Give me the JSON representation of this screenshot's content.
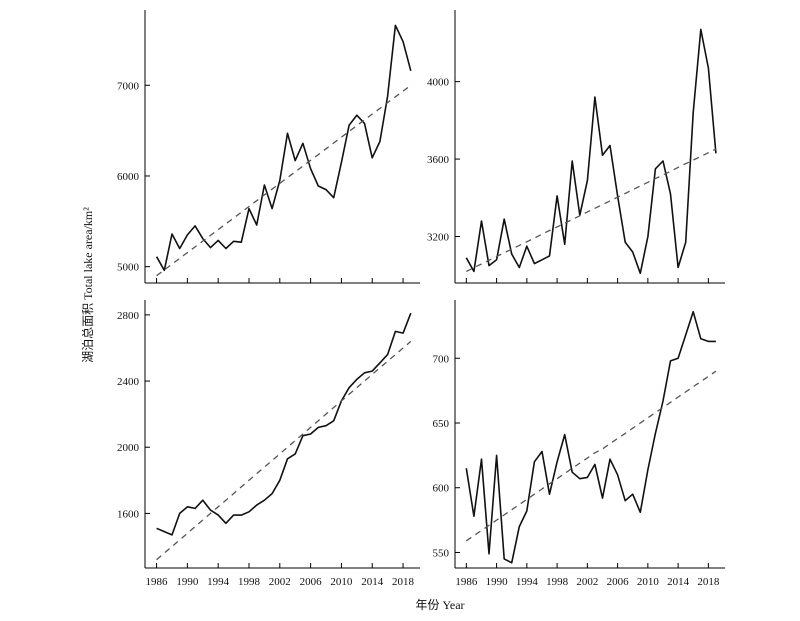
{
  "axis_titles": {
    "y": "湖泊总面积 Total lake area/km²",
    "x": "年份 Year"
  },
  "chart_data": [
    {
      "type": "line",
      "panel": "top-left",
      "x": [
        1986,
        1987,
        1988,
        1989,
        1990,
        1991,
        1992,
        1993,
        1994,
        1995,
        1996,
        1997,
        1998,
        1999,
        2000,
        2001,
        2002,
        2003,
        2004,
        2005,
        2006,
        2007,
        2008,
        2009,
        2010,
        2011,
        2012,
        2013,
        2014,
        2015,
        2016,
        2017,
        2018,
        2019
      ],
      "series": [
        {
          "style": "solid",
          "values": [
            5110,
            4960,
            5360,
            5200,
            5350,
            5450,
            5310,
            5210,
            5290,
            5200,
            5280,
            5270,
            5640,
            5460,
            5900,
            5640,
            5950,
            6470,
            6170,
            6360,
            6080,
            5890,
            5850,
            5760,
            6150,
            6560,
            6670,
            6580,
            6200,
            6380,
            6880,
            7660,
            7480,
            7160
          ]
        },
        {
          "style": "dashed",
          "values": [
            4900,
            4964,
            5027,
            5091,
            5155,
            5218,
            5282,
            5345,
            5409,
            5473,
            5536,
            5600,
            5664,
            5727,
            5791,
            5855,
            5918,
            5982,
            6045,
            6109,
            6173,
            6236,
            6300,
            6364,
            6427,
            6491,
            6555,
            6618,
            6682,
            6745,
            6809,
            6873,
            6936,
            7000
          ]
        }
      ],
      "yticks": [
        5000,
        6000,
        7000
      ],
      "ylim": [
        4820,
        7830
      ]
    },
    {
      "type": "line",
      "panel": "top-right",
      "x": [
        1986,
        1987,
        1988,
        1989,
        1990,
        1991,
        1992,
        1993,
        1994,
        1995,
        1996,
        1997,
        1998,
        1999,
        2000,
        2001,
        2002,
        2003,
        2004,
        2005,
        2006,
        2007,
        2008,
        2009,
        2010,
        2011,
        2012,
        2013,
        2014,
        2015,
        2016,
        2017,
        2018,
        2019
      ],
      "series": [
        {
          "style": "solid",
          "values": [
            3090,
            3020,
            3280,
            3050,
            3080,
            3290,
            3110,
            3040,
            3150,
            3060,
            3080,
            3100,
            3410,
            3160,
            3590,
            3310,
            3490,
            3920,
            3620,
            3670,
            3410,
            3170,
            3120,
            3010,
            3200,
            3550,
            3590,
            3420,
            3040,
            3170,
            3840,
            4270,
            4070,
            3630
          ]
        },
        {
          "style": "dashed",
          "values": [
            3020,
            3039,
            3058,
            3077,
            3097,
            3116,
            3135,
            3154,
            3173,
            3192,
            3212,
            3231,
            3250,
            3269,
            3288,
            3307,
            3327,
            3346,
            3365,
            3384,
            3403,
            3422,
            3442,
            3461,
            3480,
            3499,
            3518,
            3537,
            3557,
            3576,
            3595,
            3614,
            3633,
            3652
          ]
        }
      ],
      "yticks": [
        3200,
        3600,
        4000
      ],
      "ylim": [
        2960,
        4370
      ]
    },
    {
      "type": "line",
      "panel": "bottom-left",
      "x": [
        1986,
        1987,
        1988,
        1989,
        1990,
        1991,
        1992,
        1993,
        1994,
        1995,
        1996,
        1997,
        1998,
        1999,
        2000,
        2001,
        2002,
        2003,
        2004,
        2005,
        2006,
        2007,
        2008,
        2009,
        2010,
        2011,
        2012,
        2013,
        2014,
        2015,
        2016,
        2017,
        2018,
        2019
      ],
      "series": [
        {
          "style": "solid",
          "values": [
            1510,
            1490,
            1470,
            1600,
            1640,
            1630,
            1680,
            1620,
            1590,
            1540,
            1590,
            1590,
            1610,
            1650,
            1680,
            1720,
            1800,
            1930,
            1960,
            2070,
            2080,
            2120,
            2130,
            2160,
            2280,
            2360,
            2410,
            2450,
            2460,
            2510,
            2560,
            2700,
            2690,
            2810
          ]
        },
        {
          "style": "dashed",
          "values": [
            1320,
            1360,
            1400,
            1440,
            1480,
            1520,
            1560,
            1600,
            1640,
            1680,
            1720,
            1760,
            1800,
            1840,
            1880,
            1920,
            1960,
            2000,
            2040,
            2080,
            2120,
            2160,
            2200,
            2240,
            2280,
            2320,
            2360,
            2400,
            2440,
            2480,
            2520,
            2560,
            2600,
            2640
          ]
        }
      ],
      "yticks": [
        1600,
        2000,
        2400,
        2800
      ],
      "ylim": [
        1270,
        2890
      ]
    },
    {
      "type": "line",
      "panel": "bottom-right",
      "x": [
        1986,
        1987,
        1988,
        1989,
        1990,
        1991,
        1992,
        1993,
        1994,
        1995,
        1996,
        1997,
        1998,
        1999,
        2000,
        2001,
        2002,
        2003,
        2004,
        2005,
        2006,
        2007,
        2008,
        2009,
        2010,
        2011,
        2012,
        2013,
        2014,
        2015,
        2016,
        2017,
        2018,
        2019
      ],
      "series": [
        {
          "style": "solid",
          "values": [
            615,
            578,
            622,
            549,
            625,
            545,
            542,
            570,
            582,
            620,
            628,
            595,
            620,
            641,
            612,
            607,
            608,
            618,
            592,
            622,
            610,
            590,
            595,
            581,
            614,
            642,
            667,
            698,
            700,
            718,
            736,
            715,
            713,
            713
          ]
        },
        {
          "style": "dashed",
          "values": [
            559,
            563,
            567,
            571,
            575,
            579,
            583,
            587,
            591,
            595,
            599,
            603,
            607,
            611,
            615,
            619,
            623,
            627,
            630,
            634,
            638,
            642,
            646,
            650,
            654,
            658,
            662,
            666,
            670,
            674,
            678,
            682,
            686,
            690
          ]
        }
      ],
      "yticks": [
        550,
        600,
        650,
        700
      ],
      "ylim": [
        538,
        745
      ]
    }
  ],
  "xticks": [
    1986,
    1990,
    1994,
    1998,
    2002,
    2006,
    2010,
    2014,
    2018
  ],
  "xlim": [
    1984.5,
    2020.2
  ]
}
